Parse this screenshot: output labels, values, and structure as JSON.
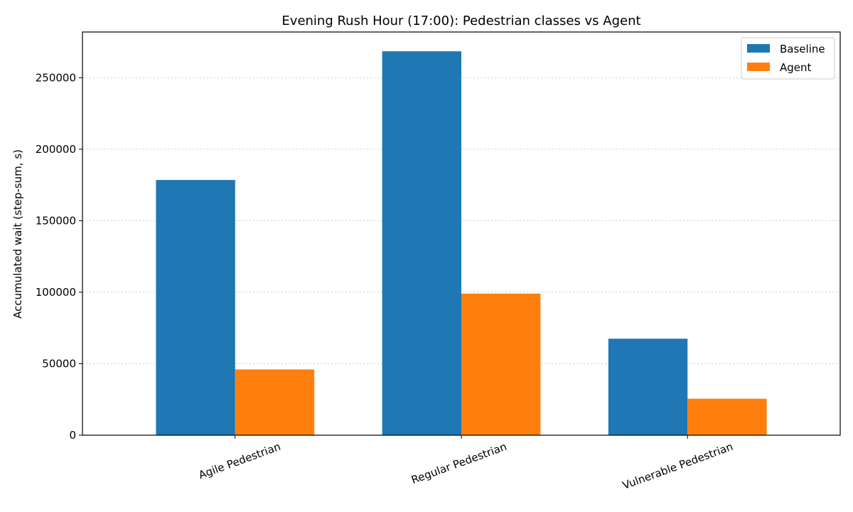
{
  "chart_data": {
    "type": "bar",
    "title": "Evening Rush Hour (17:00): Pedestrian classes vs Agent",
    "xlabel": "",
    "ylabel": "Accumulated wait (step-sum, s)",
    "categories": [
      "Agile Pedestrian",
      "Regular Pedestrian",
      "Vulnerable Pedestrian"
    ],
    "series": [
      {
        "name": "Baseline",
        "color": "#1f77b4",
        "values": [
          178500,
          268500,
          67500
        ]
      },
      {
        "name": "Agent",
        "color": "#ff7f0e",
        "values": [
          46000,
          99000,
          25500
        ]
      }
    ],
    "ylim": [
      0,
      282000
    ],
    "yticks": [
      0,
      50000,
      100000,
      150000,
      200000,
      250000
    ],
    "ytick_labels": [
      "0",
      "50000",
      "100000",
      "150000",
      "200000",
      "250000"
    ],
    "grid": "horizontal dotted",
    "legend_position": "top-right",
    "xtick_rotation": "rotated"
  }
}
